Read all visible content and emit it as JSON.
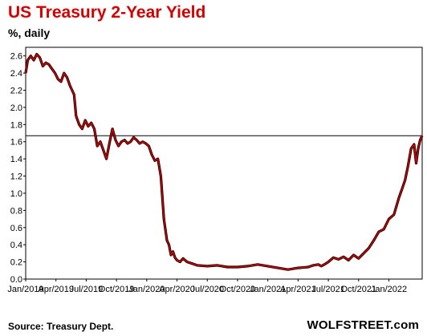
{
  "header": {
    "title": "US Treasury 2-Year Yield",
    "subtitle": "%, daily"
  },
  "footer": {
    "source": "Source: Treasury Dept.",
    "brand": "WOLFSTREET.com"
  },
  "colors": {
    "line": "#d40000",
    "line_outline": "#000000",
    "reference_line": "#000000",
    "title": "#d40000"
  },
  "chart_data": {
    "type": "line",
    "title": "US Treasury 2-Year Yield",
    "ylabel": "%, daily",
    "xlabel": "",
    "ylim": [
      0,
      2.7
    ],
    "xlim": [
      0,
      39.3
    ],
    "x_unit": "months since Jan 2019",
    "yticks": [
      0.0,
      0.2,
      0.4,
      0.6,
      0.8,
      1.0,
      1.2,
      1.4,
      1.6,
      1.8,
      2.0,
      2.2,
      2.4,
      2.6
    ],
    "ytick_labels": [
      "0.0",
      "0.2",
      "0.4",
      "0.6",
      "0.8",
      "1.0",
      "1.2",
      "1.4",
      "1.6",
      "1.8",
      "2.0",
      "2.2",
      "2.4",
      "2.6"
    ],
    "xticks": [
      0,
      3,
      6,
      9,
      12,
      15,
      18,
      21,
      24,
      27,
      30,
      33,
      36
    ],
    "xtick_labels": [
      "Jan/2019",
      "Apr/2019",
      "Jul/2019",
      "Oct/2019",
      "Jan/2020",
      "Apr/2020",
      "Jul/2020",
      "Oct/2020",
      "Jan/2021",
      "Apr/2021",
      "Jul/2021",
      "Oct/2021",
      "Jan/2022"
    ],
    "reference_line": {
      "value": 1.67
    },
    "grid": false,
    "legend": "none",
    "series": [
      {
        "name": "2-Year Yield",
        "x": [
          0,
          0.2,
          0.5,
          0.8,
          1.1,
          1.4,
          1.7,
          2.0,
          2.3,
          2.6,
          2.9,
          3.2,
          3.5,
          3.8,
          4.1,
          4.4,
          4.6,
          4.8,
          5.0,
          5.3,
          5.6,
          5.9,
          6.2,
          6.5,
          6.8,
          7.1,
          7.4,
          7.7,
          8.0,
          8.3,
          8.6,
          8.9,
          9.2,
          9.5,
          9.8,
          10.1,
          10.4,
          10.7,
          11.0,
          11.3,
          11.6,
          11.9,
          12.2,
          12.5,
          12.8,
          13.1,
          13.4,
          13.7,
          14.0,
          14.2,
          14.4,
          14.6,
          14.8,
          15.0,
          15.3,
          15.6,
          16.0,
          16.5,
          17.0,
          18.0,
          19.0,
          20.0,
          21.0,
          22.0,
          23.0,
          24.0,
          25.0,
          26.0,
          27.0,
          28.0,
          28.5,
          29.0,
          29.3,
          29.6,
          30.0,
          30.5,
          31.0,
          31.5,
          32.0,
          32.5,
          33.0,
          33.5,
          34.0,
          34.5,
          35.0,
          35.5,
          36.0,
          36.5,
          37.0,
          37.3,
          37.6,
          37.9,
          38.2,
          38.5,
          38.7,
          38.9,
          39.1,
          39.3
        ],
        "values": [
          2.4,
          2.55,
          2.6,
          2.55,
          2.62,
          2.58,
          2.48,
          2.52,
          2.5,
          2.45,
          2.4,
          2.33,
          2.3,
          2.4,
          2.35,
          2.25,
          2.2,
          2.15,
          1.9,
          1.8,
          1.75,
          1.85,
          1.78,
          1.82,
          1.75,
          1.55,
          1.6,
          1.5,
          1.4,
          1.58,
          1.75,
          1.62,
          1.55,
          1.6,
          1.62,
          1.58,
          1.6,
          1.65,
          1.62,
          1.58,
          1.6,
          1.58,
          1.55,
          1.45,
          1.38,
          1.4,
          1.2,
          0.7,
          0.45,
          0.4,
          0.28,
          0.32,
          0.25,
          0.22,
          0.2,
          0.24,
          0.2,
          0.18,
          0.16,
          0.15,
          0.16,
          0.14,
          0.14,
          0.15,
          0.17,
          0.15,
          0.13,
          0.11,
          0.13,
          0.14,
          0.16,
          0.17,
          0.15,
          0.17,
          0.2,
          0.25,
          0.23,
          0.26,
          0.22,
          0.28,
          0.24,
          0.3,
          0.36,
          0.45,
          0.55,
          0.58,
          0.7,
          0.75,
          0.95,
          1.05,
          1.15,
          1.32,
          1.52,
          1.57,
          1.35,
          1.52,
          1.62,
          1.67
        ]
      }
    ]
  }
}
